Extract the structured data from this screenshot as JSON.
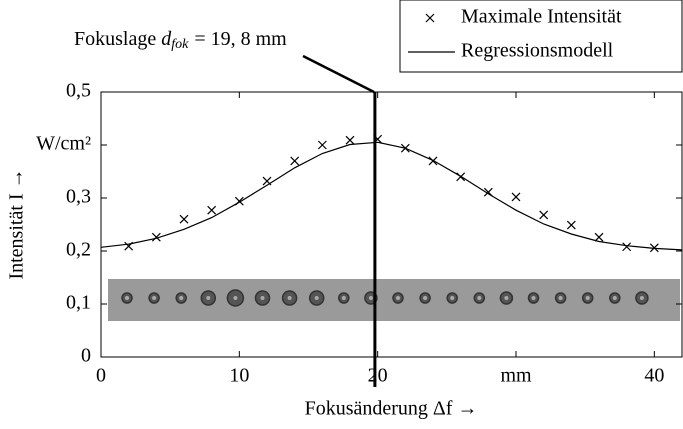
{
  "chart_data": {
    "type": "scatter",
    "xlabel": "Fokusänderung Δf →",
    "ylabel": "Intensität I →",
    "xlim": [
      0,
      42
    ],
    "ylim": [
      0,
      0.5
    ],
    "xticks": [
      0,
      10,
      20,
      {
        "value": 30,
        "label": "mm"
      },
      40
    ],
    "yticks": [
      0,
      {
        "value": 0.1,
        "label": "0,1"
      },
      {
        "value": 0.2,
        "label": "0,2"
      },
      {
        "value": 0.3,
        "label": "0,3"
      },
      {
        "value": 0.4,
        "label": "W/cm²"
      },
      {
        "value": 0.5,
        "label": "0,5"
      }
    ],
    "focus": {
      "label": "Fokuslage",
      "symbol": "d",
      "subscript": "fok",
      "value_text": "= 19, 8 mm",
      "x": 19.8
    },
    "series": [
      {
        "name": "Maximale Intensität",
        "style": "marker",
        "color": "#000000",
        "x": [
          2,
          4,
          6,
          8,
          10,
          12,
          14,
          16,
          18,
          20,
          22,
          24,
          26,
          28,
          30,
          32,
          34,
          36,
          38,
          40
        ],
        "values": [
          0.209,
          0.226,
          0.26,
          0.277,
          0.294,
          0.332,
          0.37,
          0.4,
          0.409,
          0.411,
          0.394,
          0.37,
          0.34,
          0.311,
          0.302,
          0.268,
          0.249,
          0.226,
          0.208,
          0.206
        ]
      },
      {
        "name": "Regressionsmodell",
        "style": "line",
        "color": "#000000",
        "x": [
          0,
          2,
          4,
          6,
          8,
          10,
          12,
          14,
          16,
          18,
          20,
          22,
          24,
          26,
          28,
          30,
          32,
          34,
          36,
          38,
          40,
          42
        ],
        "values": [
          0.207,
          0.213,
          0.224,
          0.241,
          0.263,
          0.292,
          0.324,
          0.357,
          0.384,
          0.401,
          0.405,
          0.394,
          0.371,
          0.341,
          0.308,
          0.277,
          0.251,
          0.232,
          0.218,
          0.21,
          0.205,
          0.202
        ]
      }
    ]
  }
}
